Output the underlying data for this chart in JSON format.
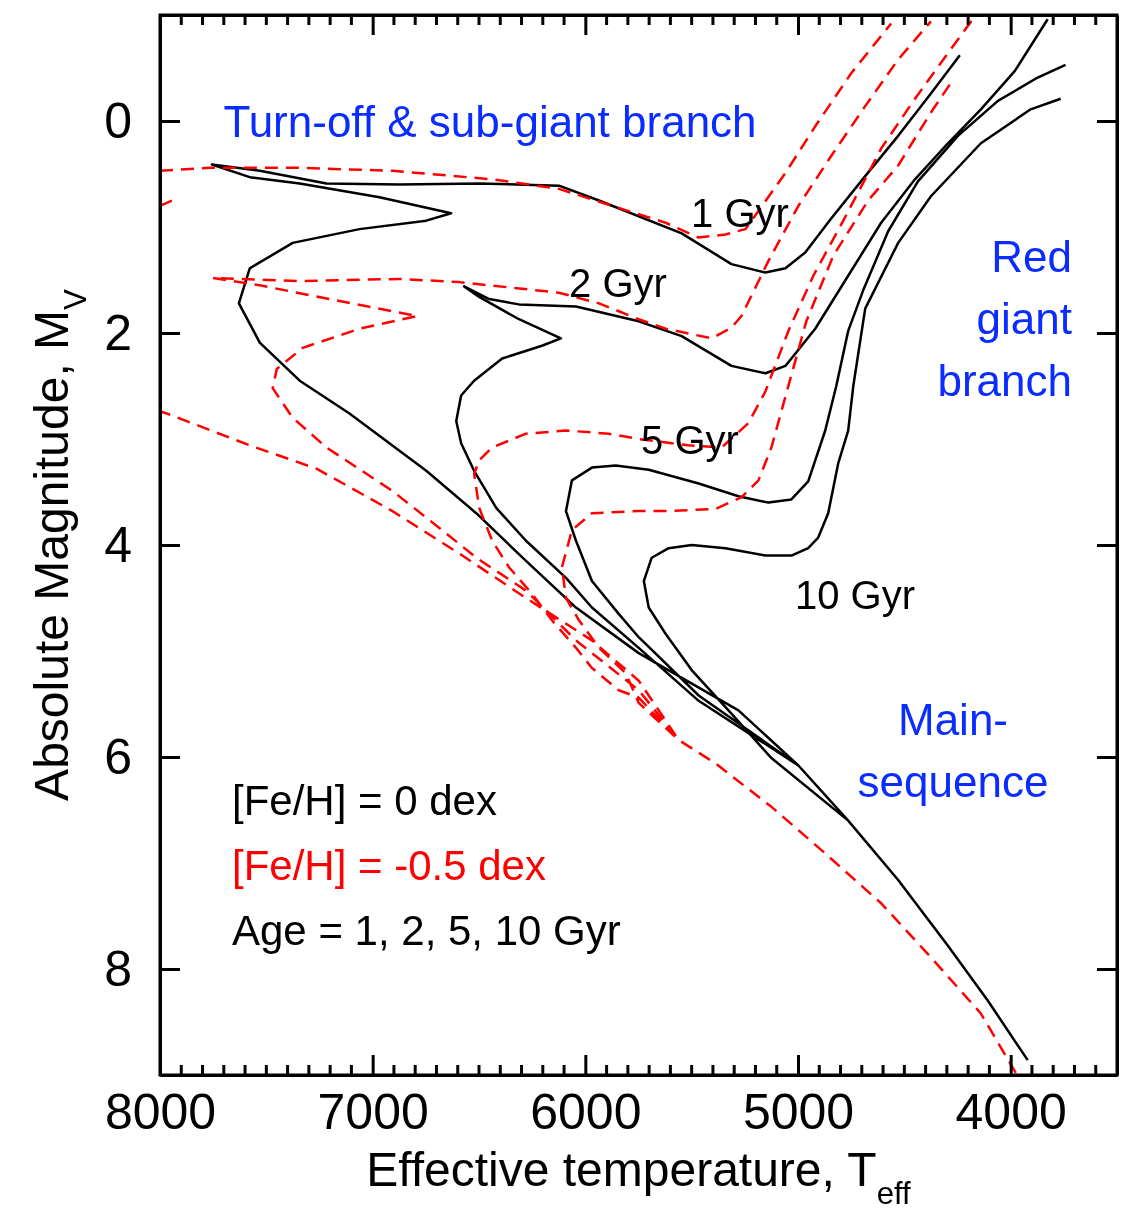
{
  "chart_data": {
    "type": "line",
    "xlabel": "Effective temperature, T$_{eff}$",
    "ylabel": "Absolute Magnitude, M$_{V}$",
    "xlim": [
      8000,
      3500
    ],
    "ylim": [
      9,
      -1
    ],
    "xticks": [
      8000,
      7000,
      6000,
      5000,
      4000
    ],
    "yticks": [
      0,
      2,
      4,
      6,
      8
    ],
    "legend": "bottom left",
    "series": [
      {
        "name": "[Fe/H] = 0 dex",
        "color": "#000000",
        "line_style": "solid",
        "x": [
          3920,
          4107,
          4295,
          4529,
          4764,
          4998,
          5280,
          5749,
          6044,
          6279,
          6513,
          6748,
          7109,
          7343,
          7531,
          7629,
          7578,
          7376,
          7062,
          6748,
          6631,
          6968,
          7343,
          7578,
          7756,
          7531,
          7217,
          6874,
          6499,
          6124,
          5936,
          5547,
          5313,
          5153,
          5059,
          4966,
          4844,
          4684,
          4529,
          4375,
          4239,
          null,
          3920,
          4107,
          4295,
          4529,
          4764,
          4998,
          5467,
          5749,
          5969,
          6091,
          6279,
          6419,
          6523,
          6584,
          6607,
          6584,
          6523,
          6391,
          6204,
          6115,
          6312,
          6499,
          6570,
          6452,
          6312,
          6044,
          5749,
          5547,
          5313,
          5153,
          5059,
          5031,
          4919,
          4764,
          4609,
          4450,
          4295,
          4140,
          3981,
          3826,
          null,
          3920,
          4107,
          4295,
          4529,
          4764,
          4998,
          5467,
          5749,
          5843,
          5969,
          6044,
          6091,
          6063,
          5969,
          5857,
          5702,
          5467,
          5280,
          5139,
          5031,
          4952,
          4872,
          4820,
          4764,
          4694,
          4576,
          4436,
          4248,
          4060,
          3873,
          3742,
          null,
          3920,
          4107,
          4295,
          4529,
          4764,
          5125,
          5313,
          5500,
          5622,
          5702,
          5725,
          5688,
          5608,
          5500,
          5341,
          5153,
          5031,
          4952,
          4905,
          4858,
          4811,
          4764,
          4740,
          4684,
          4529,
          4375,
          4140,
          3906,
          3765
        ],
        "values": [
          8.86,
          8.3,
          7.78,
          7.16,
          6.6,
          6.08,
          5.56,
          5.02,
          4.59,
          4.15,
          3.7,
          3.3,
          2.76,
          2.45,
          2.09,
          1.72,
          1.39,
          1.15,
          1.02,
          0.94,
          0.87,
          0.72,
          0.59,
          0.53,
          0.41,
          0.47,
          0.59,
          0.6,
          0.59,
          0.61,
          0.75,
          1.06,
          1.35,
          1.43,
          1.39,
          1.24,
          0.92,
          0.52,
          0.14,
          -0.26,
          -0.62,
          null,
          8.86,
          8.3,
          7.78,
          7.16,
          6.6,
          6.08,
          5.47,
          4.97,
          4.59,
          4.31,
          3.96,
          3.65,
          3.3,
          3.04,
          2.83,
          2.59,
          2.45,
          2.24,
          2.12,
          2.05,
          1.87,
          1.66,
          1.56,
          1.68,
          1.73,
          1.75,
          1.89,
          2.03,
          2.31,
          2.38,
          2.31,
          2.24,
          1.96,
          1.46,
          0.96,
          0.55,
          0.21,
          -0.11,
          -0.47,
          -0.96,
          null,
          8.86,
          8.3,
          7.78,
          7.16,
          6.6,
          6.08,
          5.42,
          4.87,
          4.65,
          4.34,
          3.96,
          3.68,
          3.39,
          3.27,
          3.25,
          3.29,
          3.42,
          3.54,
          3.6,
          3.57,
          3.4,
          2.92,
          2.5,
          1.98,
          1.6,
          1.04,
          0.57,
          0.14,
          -0.19,
          -0.41,
          -0.53,
          null,
          8.86,
          8.3,
          7.78,
          7.16,
          6.6,
          6.01,
          5.59,
          5.18,
          4.84,
          4.59,
          4.34,
          4.12,
          4.03,
          4,
          4.03,
          4.1,
          4.1,
          4.03,
          3.93,
          3.7,
          3.23,
          2.92,
          2.5,
          1.77,
          1.15,
          0.71,
          0.21,
          -0.11,
          -0.21
        ]
      },
      {
        "name": "[Fe/H] = -0.5 dex",
        "color": "#ff0000",
        "line_style": "dashed",
        "x": [
          3976,
          4140,
          4375,
          4609,
          4872,
          5125,
          5388,
          5561,
          5749,
          5969,
          6279,
          6593,
          6907,
          7264,
          7578,
          7967,
          8000,
          null,
          8000,
          7920,
          null,
          8000,
          7766,
          7376,
          6907,
          6438,
          6124,
          5749,
          5622,
          5467,
          5341,
          5247,
          5059,
          4919,
          4750,
          4562,
          null,
          3976,
          4140,
          4375,
          4609,
          4872,
          5125,
          5388,
          5561,
          5749,
          6044,
          6279,
          6513,
          6673,
          6907,
          7217,
          7376,
          7470,
          7451,
          7329,
          7062,
          6790,
          7203,
          7531,
          7751,
          7343,
          6874,
          6593,
          6124,
          5936,
          5749,
          5622,
          5406,
          5313,
          5266,
          5139,
          4998,
          4844,
          4684,
          4529,
          4375,
          null,
          3976,
          4140,
          4375,
          4609,
          4872,
          5125,
          5388,
          5561,
          5749,
          5843,
          5969,
          6044,
          6157,
          6251,
          6359,
          6438,
          6499,
          6523,
          6499,
          6438,
          6279,
          6091,
          5890,
          5749,
          5514,
          5359,
          5233,
          5153,
          5045,
          4928,
          4787,
          4609,
          4450,
          4295,
          4178,
          null,
          3976,
          4140,
          4375,
          4609,
          4872,
          5125,
          5388,
          5561,
          5749,
          5810,
          5936,
          6030,
          6091,
          6110,
          6063,
          5969,
          5749,
          5622,
          5388,
          5266,
          5186,
          5125,
          5055,
          4961,
          4834,
          4670,
          4529,
          4375,
          4281
        ],
        "values": [
          8.98,
          8.42,
          7.89,
          7.38,
          6.91,
          6.47,
          6.06,
          5.84,
          5.28,
          4.9,
          4.5,
          4.08,
          3.68,
          3.28,
          3.06,
          2.76,
          2.74,
          null,
          0.8,
          0.73,
          null,
          0.47,
          0.44,
          0.44,
          0.47,
          0.55,
          0.64,
          0.88,
          0.96,
          1.1,
          1.07,
          1.02,
          0.49,
          0.05,
          -0.45,
          -0.92,
          null,
          8.98,
          8.42,
          7.89,
          7.38,
          6.91,
          6.47,
          6.06,
          5.84,
          5.37,
          4.9,
          4.43,
          4.12,
          3.86,
          3.49,
          3.08,
          2.8,
          2.52,
          2.34,
          2.14,
          1.96,
          1.84,
          1.68,
          1.55,
          1.48,
          1.51,
          1.49,
          1.52,
          1.62,
          1.72,
          1.87,
          1.96,
          2.05,
          1.95,
          1.84,
          1.32,
          0.8,
          0.33,
          -0.14,
          -0.58,
          -0.94,
          null,
          8.98,
          8.42,
          7.89,
          7.38,
          6.91,
          6.47,
          6.06,
          5.84,
          5.44,
          5.37,
          5.16,
          4.97,
          4.71,
          4.46,
          4.21,
          3.96,
          3.65,
          3.33,
          3.2,
          3.08,
          2.95,
          2.92,
          2.95,
          3,
          3.06,
          3.08,
          2.85,
          2.55,
          1.98,
          1.46,
          0.94,
          0.26,
          -0.21,
          -0.64,
          -0.96,
          null,
          8.98,
          8.42,
          7.89,
          7.38,
          6.91,
          6.47,
          6.06,
          5.84,
          5.49,
          5.21,
          4.97,
          4.71,
          4.5,
          4.21,
          3.86,
          3.7,
          3.68,
          3.68,
          3.66,
          3.55,
          3.39,
          3.08,
          2.57,
          1.89,
          1.27,
          0.75,
          0.42,
          -0.08,
          -0.36
        ]
      }
    ],
    "annotations": [
      "1 Gyr",
      "2 Gyr",
      "5 Gyr",
      "10 Gyr",
      "Turn-off & sub-giant branch",
      "Red\ngiant\nbranch",
      "Main-\nsequence",
      "Age = 1, 2, 5, 10 Gyr"
    ]
  }
}
